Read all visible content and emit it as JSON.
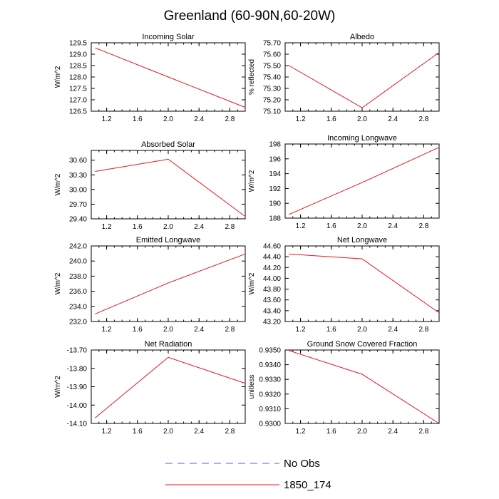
{
  "figure": {
    "title": "Greenland (60-90N,60-20W)",
    "legend": [
      {
        "label": "No Obs",
        "color": "#5b5bd6",
        "dash": true
      },
      {
        "label": "1850_174",
        "color": "#e8141e",
        "dash": false
      }
    ]
  },
  "chart_data": [
    {
      "type": "line",
      "title": "Incoming Solar",
      "ylabel": "W/m^2",
      "xlim": [
        1,
        3
      ],
      "x_ticks": [
        "1.2",
        "1.6",
        "2.0",
        "2.4",
        "2.8"
      ],
      "x_tick_values": [
        1.2,
        1.6,
        2.0,
        2.4,
        2.8
      ],
      "ylim": [
        126.5,
        129.5
      ],
      "y_ticks": [
        "126.5",
        "127.0",
        "127.5",
        "128.0",
        "128.5",
        "129.0",
        "129.5"
      ],
      "y_tick_values": [
        126.5,
        127.0,
        127.5,
        128.0,
        128.5,
        129.0,
        129.5
      ],
      "series": [
        {
          "name": "1850_174",
          "x": [
            1.05,
            2.0,
            2.99
          ],
          "y": [
            129.28,
            128.0,
            126.68
          ]
        }
      ]
    },
    {
      "type": "line",
      "title": "Albedo",
      "ylabel": "% reflected",
      "xlim": [
        1,
        3
      ],
      "x_ticks": [
        "1.2",
        "1.6",
        "2.0",
        "2.4",
        "2.8"
      ],
      "x_tick_values": [
        1.2,
        1.6,
        2.0,
        2.4,
        2.8
      ],
      "ylim": [
        75.1,
        75.7
      ],
      "y_ticks": [
        "75.10",
        "75.20",
        "75.30",
        "75.40",
        "75.50",
        "75.60",
        "75.70"
      ],
      "y_tick_values": [
        75.1,
        75.2,
        75.3,
        75.4,
        75.5,
        75.6,
        75.7
      ],
      "series": [
        {
          "name": "1850_174",
          "x": [
            1.05,
            2.0,
            2.99
          ],
          "y": [
            75.5,
            75.13,
            75.61
          ]
        }
      ]
    },
    {
      "type": "line",
      "title": "Absorbed Solar",
      "ylabel": "W/m^2",
      "xlim": [
        1,
        3
      ],
      "x_ticks": [
        "1.2",
        "1.6",
        "2.0",
        "2.4",
        "2.8"
      ],
      "x_tick_values": [
        1.2,
        1.6,
        2.0,
        2.4,
        2.8
      ],
      "ylim": [
        29.4,
        30.8
      ],
      "y_ticks": [
        "29.40",
        "29.70",
        "30.00",
        "30.30",
        "30.60"
      ],
      "y_tick_values": [
        29.4,
        29.7,
        30.0,
        30.3,
        30.6
      ],
      "series": [
        {
          "name": "1850_174",
          "x": [
            1.05,
            2.0,
            2.99
          ],
          "y": [
            30.37,
            30.62,
            29.46
          ]
        }
      ]
    },
    {
      "type": "line",
      "title": "Incoming Longwave",
      "ylabel": "W/m^2",
      "xlim": [
        1,
        3
      ],
      "x_ticks": [
        "1.2",
        "1.6",
        "2.0",
        "2.4",
        "2.8"
      ],
      "x_tick_values": [
        1.2,
        1.6,
        2.0,
        2.4,
        2.8
      ],
      "ylim": [
        188,
        198
      ],
      "y_ticks": [
        "188",
        "190",
        "192",
        "194",
        "196",
        "198"
      ],
      "y_tick_values": [
        188,
        190,
        192,
        194,
        196,
        198
      ],
      "series": [
        {
          "name": "1850_174",
          "x": [
            1.05,
            2.0,
            2.99
          ],
          "y": [
            188.5,
            192.8,
            197.5
          ]
        }
      ]
    },
    {
      "type": "line",
      "title": "Emitted Longwave",
      "ylabel": "W/m^2",
      "xlim": [
        1,
        3
      ],
      "x_ticks": [
        "1.2",
        "1.6",
        "2.0",
        "2.4",
        "2.8"
      ],
      "x_tick_values": [
        1.2,
        1.6,
        2.0,
        2.4,
        2.8
      ],
      "ylim": [
        232,
        242
      ],
      "y_ticks": [
        "232.0",
        "234.0",
        "236.0",
        "238.0",
        "240.0",
        "242.0"
      ],
      "y_tick_values": [
        232,
        234,
        236,
        238,
        240,
        242
      ],
      "series": [
        {
          "name": "1850_174",
          "x": [
            1.05,
            2.0,
            2.99
          ],
          "y": [
            233.0,
            237.1,
            240.9
          ]
        }
      ]
    },
    {
      "type": "line",
      "title": "Net Longwave",
      "ylabel": "W/m^2",
      "xlim": [
        1,
        3
      ],
      "x_ticks": [
        "1.2",
        "1.6",
        "2.0",
        "2.4",
        "2.8"
      ],
      "x_tick_values": [
        1.2,
        1.6,
        2.0,
        2.4,
        2.8
      ],
      "ylim": [
        43.2,
        44.6
      ],
      "y_ticks": [
        "43.20",
        "43.40",
        "43.60",
        "43.80",
        "44.00",
        "44.20",
        "44.40",
        "44.60"
      ],
      "y_tick_values": [
        43.2,
        43.4,
        43.6,
        43.8,
        44.0,
        44.2,
        44.4,
        44.6
      ],
      "series": [
        {
          "name": "1850_174",
          "x": [
            1.05,
            2.0,
            2.99
          ],
          "y": [
            44.45,
            44.36,
            43.37
          ]
        }
      ]
    },
    {
      "type": "line",
      "title": "Net Radiation",
      "ylabel": "W/m^2",
      "xlim": [
        1,
        3
      ],
      "x_ticks": [
        "1.2",
        "1.6",
        "2.0",
        "2.4",
        "2.8"
      ],
      "x_tick_values": [
        1.2,
        1.6,
        2.0,
        2.4,
        2.8
      ],
      "ylim": [
        -14.1,
        -13.7
      ],
      "y_ticks": [
        "-14.10",
        "-14.00",
        "-13.90",
        "-13.80",
        "-13.70"
      ],
      "y_tick_values": [
        -14.1,
        -14.0,
        -13.9,
        -13.8,
        -13.7
      ],
      "series": [
        {
          "name": "1850_174",
          "x": [
            1.05,
            2.0,
            2.99
          ],
          "y": [
            -14.07,
            -13.74,
            -13.88
          ]
        }
      ]
    },
    {
      "type": "line",
      "title": "Ground Snow Covered Fraction",
      "ylabel": "unitless",
      "xlim": [
        1,
        3
      ],
      "x_ticks": [
        "1.2",
        "1.6",
        "2.0",
        "2.4",
        "2.8"
      ],
      "x_tick_values": [
        1.2,
        1.6,
        2.0,
        2.4,
        2.8
      ],
      "ylim": [
        0.93,
        0.935
      ],
      "y_ticks": [
        "0.9300",
        "0.9310",
        "0.9320",
        "0.9330",
        "0.9340",
        "0.9350"
      ],
      "y_tick_values": [
        0.93,
        0.931,
        0.932,
        0.933,
        0.934,
        0.935
      ],
      "series": [
        {
          "name": "1850_174",
          "x": [
            1.05,
            2.0,
            2.99
          ],
          "y": [
            0.93496,
            0.93335,
            0.93003
          ]
        }
      ]
    }
  ]
}
